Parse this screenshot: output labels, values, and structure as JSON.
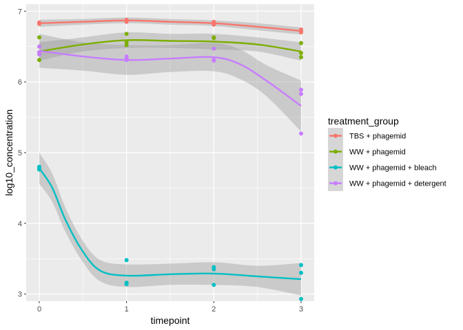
{
  "chart_data": {
    "type": "scatter",
    "xlabel": "timepoint",
    "ylabel": "log10_concentration",
    "xlim": [
      -0.15,
      3.15
    ],
    "ylim": [
      2.9,
      7.1
    ],
    "x_ticks": [
      0,
      1,
      2,
      3
    ],
    "y_ticks": [
      3,
      4,
      5,
      6,
      7
    ],
    "grid": true,
    "legend": {
      "title": "treatment_group",
      "placement": "right"
    },
    "series": [
      {
        "name": "TBS + phagemid",
        "color": "#F8766D",
        "points": [
          [
            0,
            6.82
          ],
          [
            0,
            6.83
          ],
          [
            0,
            6.84
          ],
          [
            1,
            6.85
          ],
          [
            1,
            6.87
          ],
          [
            1,
            6.88
          ],
          [
            2,
            6.81
          ],
          [
            2,
            6.83
          ],
          [
            2,
            6.85
          ],
          [
            3,
            6.7
          ],
          [
            3,
            6.72
          ],
          [
            3,
            6.74
          ]
        ],
        "smooth": [
          [
            0,
            6.83
          ],
          [
            0.5,
            6.85
          ],
          [
            1,
            6.87
          ],
          [
            1.5,
            6.85
          ],
          [
            2,
            6.83
          ],
          [
            2.5,
            6.78
          ],
          [
            3,
            6.72
          ]
        ],
        "band": [
          [
            0,
            6.78,
            6.88
          ],
          [
            0.5,
            6.81,
            6.89
          ],
          [
            1,
            6.83,
            6.91
          ],
          [
            1.5,
            6.81,
            6.89
          ],
          [
            2,
            6.79,
            6.87
          ],
          [
            2.5,
            6.73,
            6.83
          ],
          [
            3,
            6.67,
            6.77
          ]
        ]
      },
      {
        "name": "WW + phagemid",
        "color": "#7CAE00",
        "points": [
          [
            0,
            6.31
          ],
          [
            0,
            6.42
          ],
          [
            0,
            6.63
          ],
          [
            1,
            6.52
          ],
          [
            1,
            6.56
          ],
          [
            1,
            6.68
          ],
          [
            2,
            6.47
          ],
          [
            2,
            6.62
          ],
          [
            2,
            6.63
          ],
          [
            3,
            6.35
          ],
          [
            3,
            6.41
          ],
          [
            3,
            6.55
          ]
        ],
        "smooth": [
          [
            0,
            6.43
          ],
          [
            0.5,
            6.53
          ],
          [
            1,
            6.59
          ],
          [
            1.5,
            6.58
          ],
          [
            2,
            6.57
          ],
          [
            2.5,
            6.53
          ],
          [
            3,
            6.43
          ]
        ],
        "band": [
          [
            0,
            6.3,
            6.56
          ],
          [
            0.5,
            6.43,
            6.63
          ],
          [
            1,
            6.48,
            6.7
          ],
          [
            1.5,
            6.48,
            6.68
          ],
          [
            2,
            6.46,
            6.68
          ],
          [
            2.5,
            6.43,
            6.63
          ],
          [
            3,
            6.3,
            6.56
          ]
        ]
      },
      {
        "name": "WW + phagemid + bleach",
        "color": "#00BFC4",
        "points": [
          [
            0,
            4.76
          ],
          [
            0,
            4.78
          ],
          [
            0,
            4.8
          ],
          [
            1,
            3.14
          ],
          [
            1,
            3.16
          ],
          [
            1,
            3.48
          ],
          [
            2,
            3.13
          ],
          [
            2,
            3.35
          ],
          [
            2,
            3.38
          ],
          [
            3,
            2.93
          ],
          [
            3,
            3.3
          ],
          [
            3,
            3.41
          ]
        ],
        "smooth": [
          [
            0,
            4.78
          ],
          [
            0.15,
            4.5
          ],
          [
            0.3,
            4.05
          ],
          [
            0.5,
            3.6
          ],
          [
            0.7,
            3.33
          ],
          [
            1,
            3.26
          ],
          [
            1.5,
            3.28
          ],
          [
            2,
            3.29
          ],
          [
            2.5,
            3.25
          ],
          [
            3,
            3.21
          ]
        ],
        "band": [
          [
            0,
            4.56,
            5.0
          ],
          [
            0.15,
            4.3,
            4.7
          ],
          [
            0.3,
            3.88,
            4.22
          ],
          [
            0.5,
            3.45,
            3.75
          ],
          [
            0.7,
            3.18,
            3.48
          ],
          [
            1,
            3.1,
            3.42
          ],
          [
            1.5,
            3.13,
            3.43
          ],
          [
            2,
            3.13,
            3.45
          ],
          [
            2.5,
            3.1,
            3.4
          ],
          [
            3,
            2.98,
            3.44
          ]
        ]
      },
      {
        "name": "WW + phagemid + detergent",
        "color": "#C77CFF",
        "points": [
          [
            0,
            6.39
          ],
          [
            0,
            6.42
          ],
          [
            0,
            6.5
          ],
          [
            1,
            6.31
          ],
          [
            1,
            6.33
          ],
          [
            1,
            6.36
          ],
          [
            2,
            6.3
          ],
          [
            2,
            6.31
          ],
          [
            2,
            6.47
          ],
          [
            3,
            5.27
          ],
          [
            3,
            5.83
          ],
          [
            3,
            5.89
          ]
        ],
        "smooth": [
          [
            0,
            6.44
          ],
          [
            0.5,
            6.36
          ],
          [
            1,
            6.31
          ],
          [
            1.5,
            6.33
          ],
          [
            2,
            6.35
          ],
          [
            2.3,
            6.25
          ],
          [
            2.6,
            6.02
          ],
          [
            3,
            5.66
          ]
        ],
        "band": [
          [
            0,
            6.2,
            6.68
          ],
          [
            0.5,
            6.16,
            6.56
          ],
          [
            1,
            6.1,
            6.52
          ],
          [
            1.5,
            6.14,
            6.52
          ],
          [
            2,
            6.15,
            6.55
          ],
          [
            2.3,
            6.04,
            6.46
          ],
          [
            2.6,
            5.8,
            6.24
          ],
          [
            3,
            5.3,
            6.02
          ]
        ]
      }
    ]
  }
}
